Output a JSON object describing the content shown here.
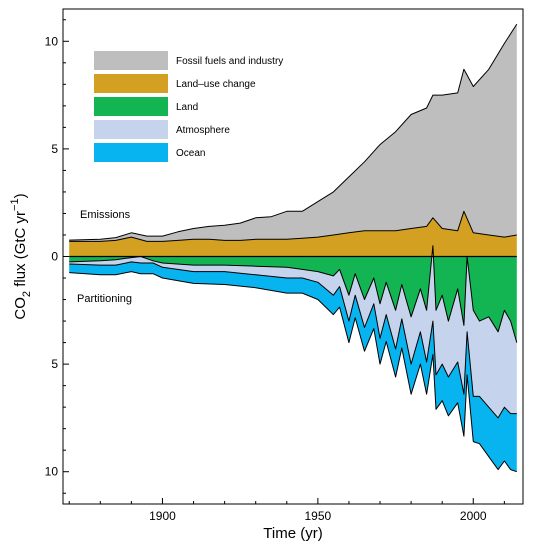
{
  "chart_data": {
    "type": "area",
    "xlabel": "Time (yr)",
    "ylabel_parts": {
      "co": "CO",
      "sub": "2",
      "mid": " flux (GtC yr",
      "sup": "−1",
      "close": ")"
    },
    "xlim": [
      1868,
      2016
    ],
    "ylim": [
      -11.5,
      11.5
    ],
    "x_ticks": [
      1900,
      1950,
      2000
    ],
    "y_ticks": [
      {
        "value": 10,
        "label": "10"
      },
      {
        "value": 5,
        "label": "5"
      },
      {
        "value": 0,
        "label": "0"
      },
      {
        "value": -5,
        "label": "5"
      },
      {
        "value": -10,
        "label": "10"
      }
    ],
    "annotations": {
      "emissions": "Emissions",
      "partitioning": "Partitioning"
    },
    "legend_position": "top-left",
    "series": [
      {
        "key": "fossil",
        "name": "Fossil fuels and industry",
        "color": "#bebebe"
      },
      {
        "key": "landuse",
        "name": "Land–use change",
        "color": "#d4a021"
      },
      {
        "key": "land",
        "name": "Land",
        "color": "#12b552"
      },
      {
        "key": "atmosphere",
        "name": "Atmosphere",
        "color": "#c5d3ec"
      },
      {
        "key": "ocean",
        "name": "Ocean",
        "color": "#08b4f0"
      }
    ],
    "emissions_x": [
      1870,
      1880,
      1885,
      1890,
      1895,
      1900,
      1905,
      1910,
      1915,
      1920,
      1925,
      1930,
      1935,
      1940,
      1945,
      1950,
      1955,
      1960,
      1965,
      1970,
      1975,
      1980,
      1985,
      1987,
      1990,
      1995,
      1997,
      2000,
      2005,
      2010,
      2014
    ],
    "fossil": [
      0.06,
      0.1,
      0.13,
      0.2,
      0.25,
      0.25,
      0.4,
      0.5,
      0.6,
      0.7,
      0.8,
      1.0,
      1.05,
      1.3,
      1.25,
      1.65,
      2.0,
      2.6,
      3.2,
      4.0,
      4.6,
      5.3,
      5.5,
      5.7,
      6.2,
      6.4,
      6.6,
      6.8,
      7.7,
      9.0,
      9.8
    ],
    "landuse": [
      0.7,
      0.7,
      0.75,
      0.9,
      0.7,
      0.7,
      0.75,
      0.8,
      0.8,
      0.75,
      0.75,
      0.8,
      0.8,
      0.8,
      0.85,
      0.9,
      1.0,
      1.1,
      1.2,
      1.2,
      1.2,
      1.3,
      1.4,
      1.8,
      1.3,
      1.2,
      2.1,
      1.1,
      1.0,
      0.9,
      1.0
    ],
    "partition_x": [
      1870,
      1880,
      1885,
      1890,
      1893,
      1897,
      1900,
      1910,
      1920,
      1930,
      1940,
      1945,
      1950,
      1955,
      1957,
      1960,
      1962,
      1965,
      1968,
      1970,
      1972,
      1975,
      1977,
      1980,
      1983,
      1985,
      1987,
      1988,
      1990,
      1992,
      1995,
      1997,
      1998,
      2000,
      2002,
      2005,
      2008,
      2010,
      2012,
      2014
    ],
    "land": [
      0.25,
      0.2,
      0.15,
      0.05,
      0.0,
      0.2,
      0.3,
      0.4,
      0.4,
      0.45,
      0.5,
      0.6,
      0.7,
      0.9,
      0.6,
      1.8,
      0.8,
      2.0,
      1.0,
      2.2,
      1.2,
      2.5,
      1.3,
      2.8,
      1.5,
      2.5,
      -0.5,
      2.5,
      1.8,
      3.0,
      1.5,
      3.2,
      0.0,
      2.5,
      3.0,
      2.8,
      3.5,
      2.5,
      3.0,
      4.0
    ],
    "atmosphere": [
      0.1,
      0.2,
      0.25,
      0.2,
      0.3,
      0.1,
      0.2,
      0.3,
      0.3,
      0.4,
      0.5,
      0.4,
      0.5,
      0.9,
      0.8,
      1.2,
      1.0,
      1.3,
      1.2,
      1.6,
      1.5,
      1.8,
      1.6,
      2.2,
      2.0,
      2.4,
      3.5,
      3.0,
      3.2,
      2.6,
      3.4,
      3.2,
      3.5,
      4.0,
      3.5,
      4.2,
      4.0,
      4.5,
      4.3,
      3.3
    ],
    "ocean": [
      0.4,
      0.45,
      0.45,
      0.45,
      0.5,
      0.5,
      0.5,
      0.55,
      0.6,
      0.6,
      0.7,
      0.7,
      0.8,
      0.9,
      0.95,
      1.0,
      1.05,
      1.1,
      1.15,
      1.2,
      1.25,
      1.3,
      1.35,
      1.4,
      1.5,
      1.5,
      1.55,
      1.6,
      1.7,
      1.8,
      1.9,
      1.95,
      2.0,
      2.1,
      2.2,
      2.3,
      2.4,
      2.5,
      2.6,
      2.7
    ]
  }
}
